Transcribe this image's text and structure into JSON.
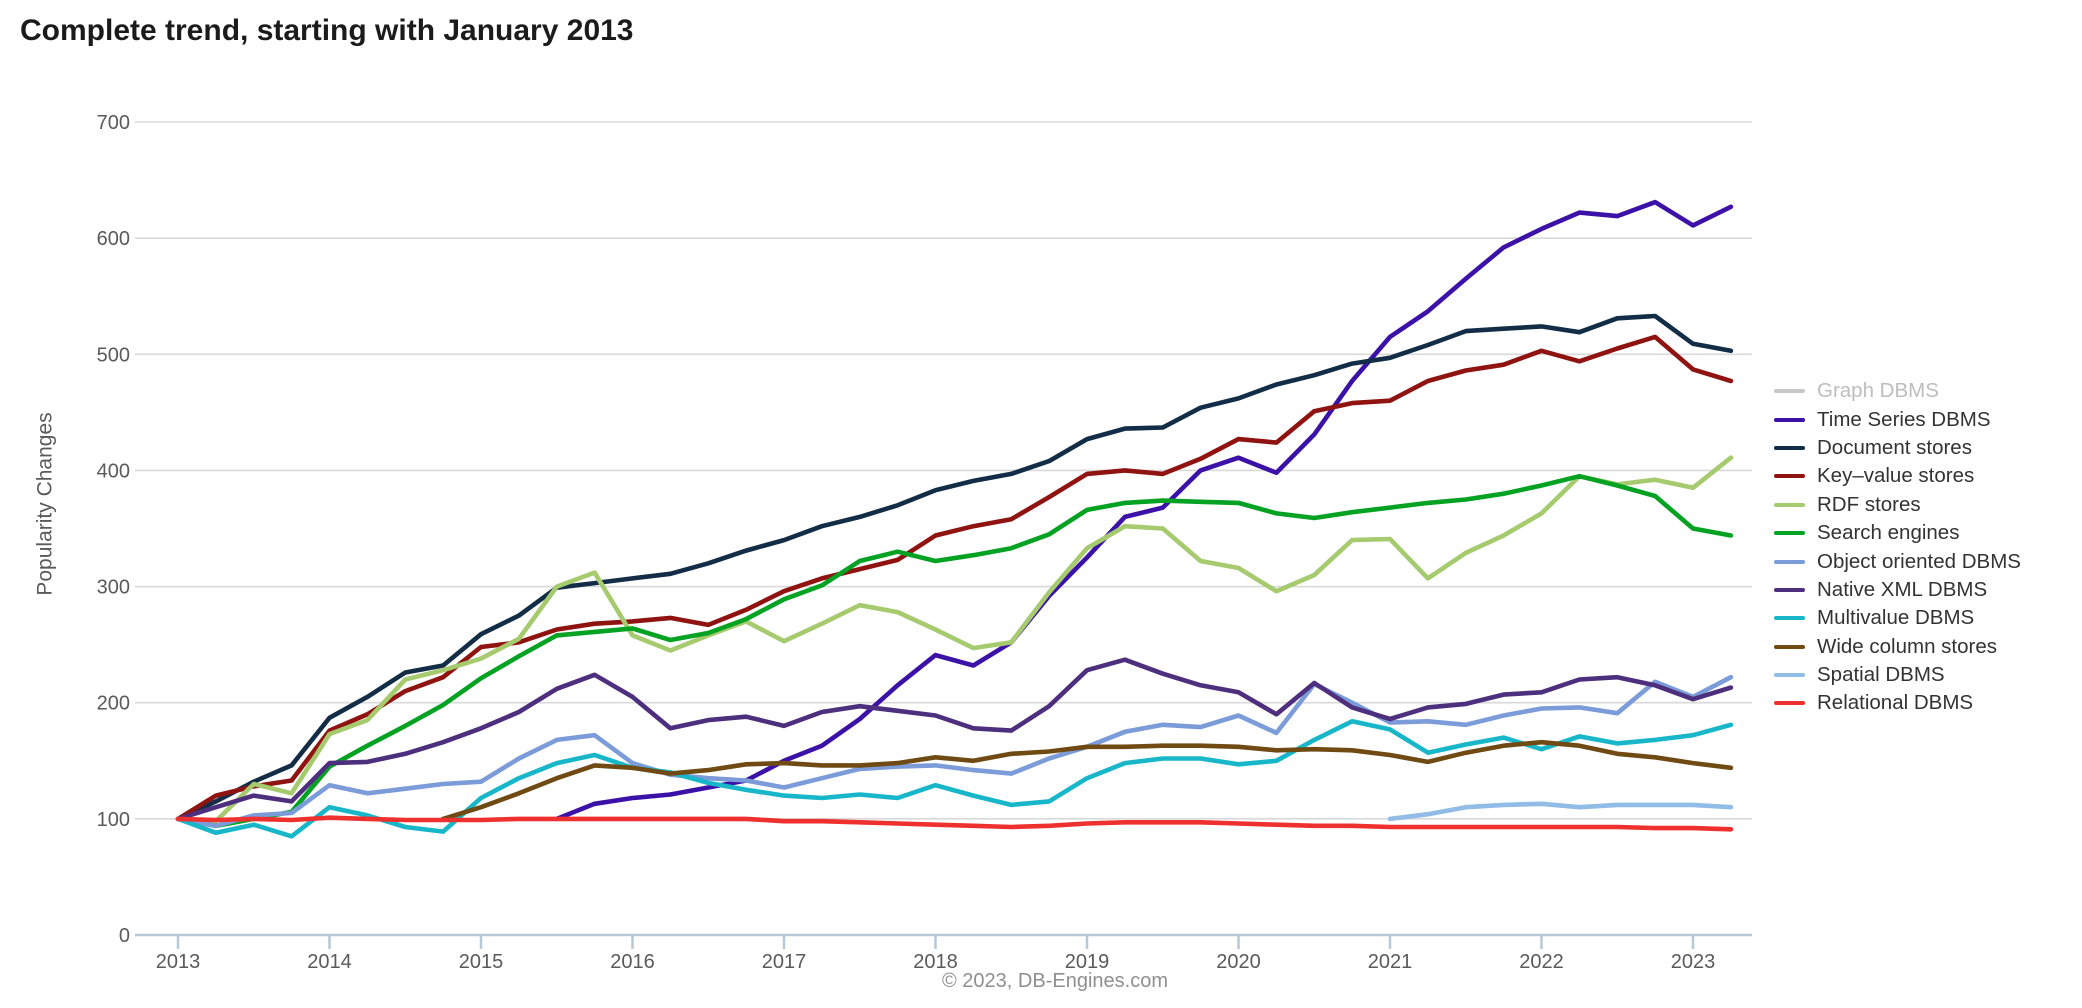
{
  "title": "Complete trend, starting with January 2013",
  "footer": "© 2023, DB-Engines.com",
  "chart_data": {
    "type": "line",
    "title": "Complete trend, starting with January 2013",
    "xlabel": "",
    "ylabel": "Popularity Changes",
    "ylim": [
      0,
      700
    ],
    "y_ticks": [
      700,
      600,
      500,
      400,
      300,
      200,
      100,
      0
    ],
    "x_ticks": [
      "2013",
      "2014",
      "2015",
      "2016",
      "2017",
      "2018",
      "2019",
      "2020",
      "2021",
      "2022",
      "2023"
    ],
    "x_start": 2013.0,
    "x_step_years": 0.25,
    "grid": "horizontal only",
    "legend_position": "right of plot",
    "colors": {
      "grid": "#d9d9d9",
      "x_axis": "#b4c8d8",
      "tick_text": "#5a5a5a",
      "title_text": "#1b1b1b",
      "footer_text": "#8f8f8f"
    },
    "series": [
      {
        "name": "Graph DBMS",
        "color": "#c8c8c8",
        "disabled": true,
        "values": []
      },
      {
        "name": "Time Series DBMS",
        "color": "#3b11a8",
        "disabled": false,
        "values": [
          null,
          null,
          null,
          null,
          null,
          null,
          null,
          null,
          null,
          null,
          100,
          113,
          118,
          121,
          127,
          133,
          150,
          163,
          186,
          215,
          241,
          232,
          252,
          292,
          325,
          360,
          368,
          400,
          411,
          398,
          431,
          477,
          515,
          537,
          565,
          592,
          608,
          622,
          619,
          631,
          611,
          627
        ]
      },
      {
        "name": "Document stores",
        "color": "#132d46",
        "disabled": false,
        "values": [
          100,
          115,
          132,
          146,
          187,
          205,
          226,
          232,
          259,
          275,
          299,
          303,
          307,
          311,
          320,
          331,
          340,
          352,
          360,
          370,
          383,
          391,
          397,
          408,
          427,
          436,
          437,
          454,
          462,
          474,
          482,
          492,
          497,
          508,
          520,
          522,
          524,
          519,
          531,
          533,
          509,
          503
        ]
      },
      {
        "name": "Key–value stores",
        "color": "#8f1310",
        "disabled": false,
        "values": [
          100,
          120,
          128,
          133,
          176,
          190,
          210,
          222,
          248,
          252,
          263,
          268,
          270,
          273,
          267,
          280,
          296,
          307,
          315,
          323,
          344,
          352,
          358,
          377,
          397,
          400,
          397,
          410,
          427,
          424,
          451,
          458,
          460,
          477,
          486,
          491,
          503,
          494,
          505,
          515,
          487,
          477
        ]
      },
      {
        "name": "RDF stores",
        "color": "#a6ca6e",
        "disabled": false,
        "values": [
          100,
          98,
          130,
          122,
          173,
          185,
          220,
          228,
          238,
          255,
          300,
          312,
          258,
          245,
          258,
          270,
          253,
          268,
          284,
          278,
          263,
          247,
          252,
          295,
          333,
          352,
          350,
          322,
          316,
          296,
          310,
          340,
          341,
          307,
          329,
          344,
          363,
          395,
          388,
          392,
          385,
          411
        ]
      },
      {
        "name": "Search engines",
        "color": "#04a222",
        "disabled": false,
        "values": [
          100,
          94,
          100,
          106,
          145,
          163,
          180,
          198,
          221,
          240,
          258,
          261,
          264,
          254,
          260,
          272,
          289,
          301,
          322,
          330,
          322,
          327,
          333,
          345,
          366,
          372,
          374,
          373,
          372,
          363,
          359,
          364,
          368,
          372,
          375,
          380,
          387,
          395,
          387,
          378,
          350,
          344
        ]
      },
      {
        "name": "Object oriented DBMS",
        "color": "#7b9bd9",
        "disabled": false,
        "values": [
          100,
          94,
          103,
          105,
          129,
          122,
          126,
          130,
          132,
          152,
          168,
          172,
          148,
          138,
          135,
          133,
          127,
          135,
          143,
          145,
          146,
          142,
          139,
          152,
          162,
          175,
          181,
          179,
          189,
          174,
          216,
          200,
          183,
          184,
          181,
          189,
          195,
          196,
          191,
          218,
          205,
          222
        ]
      },
      {
        "name": "Native XML DBMS",
        "color": "#4e2f7e",
        "disabled": false,
        "values": [
          100,
          110,
          120,
          115,
          148,
          149,
          156,
          166,
          178,
          192,
          212,
          224,
          205,
          178,
          185,
          188,
          180,
          192,
          197,
          193,
          189,
          178,
          176,
          197,
          228,
          237,
          225,
          215,
          209,
          190,
          217,
          196,
          186,
          196,
          199,
          207,
          209,
          220,
          222,
          215,
          203,
          213
        ]
      },
      {
        "name": "Multivalue DBMS",
        "color": "#17b6c9",
        "disabled": false,
        "values": [
          100,
          88,
          95,
          85,
          110,
          103,
          93,
          89,
          118,
          135,
          148,
          155,
          144,
          140,
          131,
          125,
          120,
          118,
          121,
          118,
          129,
          120,
          112,
          115,
          135,
          148,
          152,
          152,
          147,
          150,
          168,
          184,
          177,
          157,
          164,
          170,
          160,
          171,
          165,
          168,
          172,
          181
        ]
      },
      {
        "name": "Wide column stores",
        "color": "#6f4b13",
        "disabled": false,
        "values": [
          null,
          null,
          null,
          null,
          null,
          null,
          null,
          100,
          110,
          122,
          135,
          146,
          144,
          139,
          142,
          147,
          148,
          146,
          146,
          148,
          153,
          150,
          156,
          158,
          162,
          162,
          163,
          163,
          162,
          159,
          160,
          159,
          155,
          149,
          157,
          163,
          166,
          163,
          156,
          153,
          148,
          144
        ]
      },
      {
        "name": "Spatial DBMS",
        "color": "#90bce5",
        "disabled": false,
        "values": [
          null,
          null,
          null,
          null,
          null,
          null,
          null,
          null,
          null,
          null,
          null,
          null,
          null,
          null,
          null,
          null,
          null,
          null,
          null,
          null,
          null,
          null,
          null,
          null,
          null,
          null,
          null,
          null,
          null,
          null,
          null,
          null,
          100,
          104,
          110,
          112,
          113,
          110,
          112,
          112,
          112,
          110
        ]
      },
      {
        "name": "Relational DBMS",
        "color": "#ee312e",
        "disabled": false,
        "values": [
          100,
          99,
          100,
          99,
          101,
          100,
          99,
          99,
          99,
          100,
          100,
          100,
          100,
          100,
          100,
          100,
          98,
          98,
          97,
          96,
          95,
          94,
          93,
          94,
          96,
          97,
          97,
          97,
          96,
          95,
          94,
          94,
          93,
          93,
          93,
          93,
          93,
          93,
          93,
          92,
          92,
          91
        ]
      }
    ]
  }
}
